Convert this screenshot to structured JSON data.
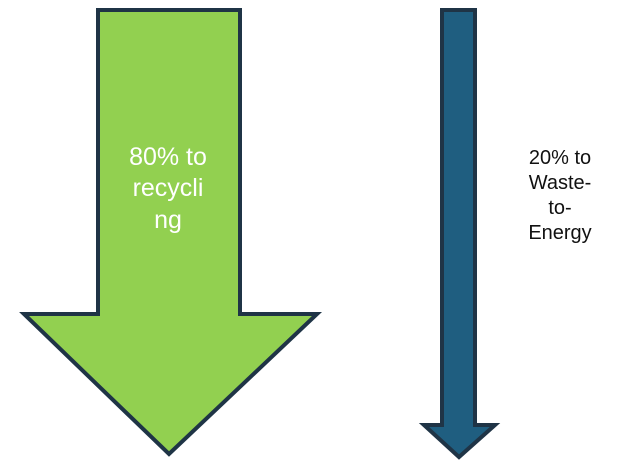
{
  "arrows": [
    {
      "id": "recycling",
      "label": "80% to\nrecycli\nng",
      "percent": 80,
      "fill": "#92D050",
      "stroke": "#1F3446",
      "text_color": "#FFFFFF"
    },
    {
      "id": "waste-to-energy",
      "label": "20% to\nWaste-\nto-\nEnergy",
      "percent": 20,
      "fill": "#1F5E80",
      "stroke": "#1F3446",
      "text_color": "#111111"
    }
  ]
}
